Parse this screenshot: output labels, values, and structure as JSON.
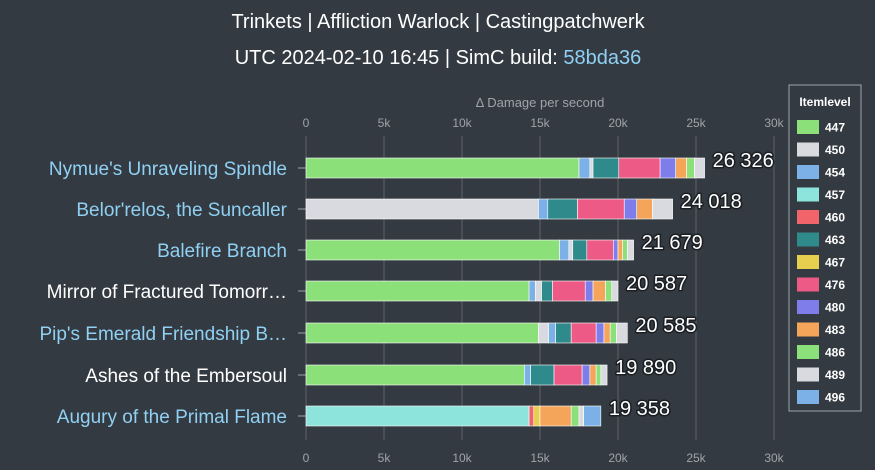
{
  "header": {
    "title": "Trinkets | Affliction Warlock | Castingpatchwerk",
    "subtitle_prefix": "UTC 2024-02-10 16:45 | SimC build: ",
    "build_hash": "58bda36"
  },
  "chart_data": {
    "type": "bar",
    "orientation": "horizontal",
    "stacked": true,
    "xlabel": "Δ Damage per second",
    "xlim": [
      0,
      30000
    ],
    "ticks": [
      0,
      5000,
      10000,
      15000,
      20000,
      25000,
      30000
    ],
    "tick_labels": [
      "0",
      "5k",
      "10k",
      "15k",
      "20k",
      "25k",
      "30k"
    ],
    "grid": true,
    "legend_title": "Itemlevel",
    "legend_position": "right",
    "series": [
      {
        "name": "447",
        "color": "#8be07a"
      },
      {
        "name": "450",
        "color": "#d9dadf"
      },
      {
        "name": "454",
        "color": "#7bb1e6"
      },
      {
        "name": "457",
        "color": "#8de4dd"
      },
      {
        "name": "460",
        "color": "#f0646a"
      },
      {
        "name": "463",
        "color": "#2f8a8c"
      },
      {
        "name": "467",
        "color": "#e6cf4f"
      },
      {
        "name": "476",
        "color": "#ee5a86"
      },
      {
        "name": "480",
        "color": "#7e7de9"
      },
      {
        "name": "483",
        "color": "#f4a55a"
      },
      {
        "name": "486",
        "color": "#8be07a"
      },
      {
        "name": "489",
        "color": "#d9dadf"
      },
      {
        "name": "496",
        "color": "#7bb1e6"
      }
    ],
    "categories": [
      {
        "name": "Nymue's Unraveling Spindle",
        "label_color": "#8fd0f3",
        "total": "26 326",
        "segments": [
          {
            "series": "447",
            "value": 17500
          },
          {
            "series": "454",
            "value": 700
          },
          {
            "series": "450",
            "value": 200
          },
          {
            "series": "463",
            "value": 1650
          },
          {
            "series": "476",
            "value": 2650
          },
          {
            "series": "480",
            "value": 1000
          },
          {
            "series": "483",
            "value": 700
          },
          {
            "series": "486",
            "value": 500
          },
          {
            "series": "489",
            "value": 650
          }
        ]
      },
      {
        "name": "Belor'relos, the Suncaller",
        "label_color": "#8fd0f3",
        "total": "24 018",
        "segments": [
          {
            "series": "450",
            "value": 14900
          },
          {
            "series": "454",
            "value": 600
          },
          {
            "series": "463",
            "value": 1900
          },
          {
            "series": "476",
            "value": 3000
          },
          {
            "series": "480",
            "value": 800
          },
          {
            "series": "483",
            "value": 1000
          },
          {
            "series": "489",
            "value": 1300
          }
        ]
      },
      {
        "name": "Balefire Branch",
        "label_color": "#8fd0f3",
        "total": "21 679",
        "segments": [
          {
            "series": "447",
            "value": 16250
          },
          {
            "series": "454",
            "value": 600
          },
          {
            "series": "450",
            "value": 250
          },
          {
            "series": "463",
            "value": 900
          },
          {
            "series": "476",
            "value": 1700
          },
          {
            "series": "480",
            "value": 300
          },
          {
            "series": "483",
            "value": 300
          },
          {
            "series": "486",
            "value": 300
          },
          {
            "series": "489",
            "value": 400
          }
        ]
      },
      {
        "name": "Mirror of Fractured Tomorr…",
        "label_color": "#ffffff",
        "total": "20 587",
        "segments": [
          {
            "series": "447",
            "value": 14300
          },
          {
            "series": "454",
            "value": 400
          },
          {
            "series": "450",
            "value": 400
          },
          {
            "series": "463",
            "value": 700
          },
          {
            "series": "476",
            "value": 2100
          },
          {
            "series": "480",
            "value": 500
          },
          {
            "series": "483",
            "value": 800
          },
          {
            "series": "486",
            "value": 400
          },
          {
            "series": "489",
            "value": 400
          }
        ]
      },
      {
        "name": "Pip's Emerald Friendship B…",
        "label_color": "#8fd0f3",
        "total": "20 585",
        "segments": [
          {
            "series": "447",
            "value": 14900
          },
          {
            "series": "450",
            "value": 650
          },
          {
            "series": "454",
            "value": 450
          },
          {
            "series": "463",
            "value": 1000
          },
          {
            "series": "476",
            "value": 1600
          },
          {
            "series": "480",
            "value": 500
          },
          {
            "series": "483",
            "value": 400
          },
          {
            "series": "486",
            "value": 400
          },
          {
            "series": "489",
            "value": 700
          }
        ]
      },
      {
        "name": "Ashes of the Embersoul",
        "label_color": "#ffffff",
        "total": "19 890",
        "segments": [
          {
            "series": "447",
            "value": 14000
          },
          {
            "series": "454",
            "value": 400
          },
          {
            "series": "463",
            "value": 1500
          },
          {
            "series": "476",
            "value": 1800
          },
          {
            "series": "480",
            "value": 500
          },
          {
            "series": "483",
            "value": 400
          },
          {
            "series": "486",
            "value": 300
          },
          {
            "series": "489",
            "value": 400
          }
        ]
      },
      {
        "name": "Augury of the Primal Flame",
        "label_color": "#8fd0f3",
        "total": "19 358",
        "segments": [
          {
            "series": "457",
            "value": 14300
          },
          {
            "series": "460",
            "value": 300
          },
          {
            "series": "467",
            "value": 400
          },
          {
            "series": "483",
            "value": 2000
          },
          {
            "series": "486",
            "value": 500
          },
          {
            "series": "489",
            "value": 300
          },
          {
            "series": "496",
            "value": 1100
          }
        ]
      }
    ]
  }
}
